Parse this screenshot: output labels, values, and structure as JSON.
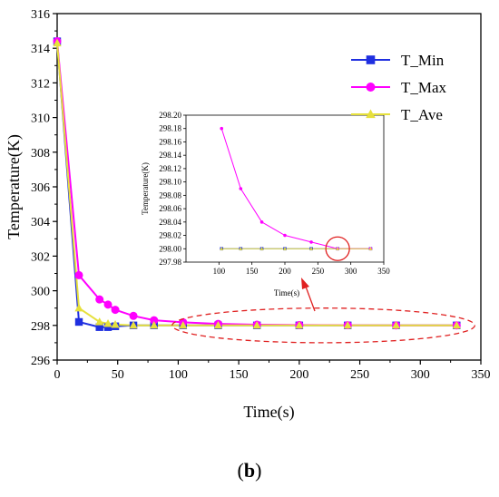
{
  "colors": {
    "t_min": "#1f2fe0",
    "t_max": "#ff00ff",
    "t_ave": "#e6e03c",
    "annotation": "#e02020",
    "axis": "#000000"
  },
  "caption": {
    "open": "(",
    "letter": "b",
    "close": ")"
  },
  "chart_data": [
    {
      "id": "main",
      "type": "line",
      "title": "",
      "xlabel": "Time(s)",
      "ylabel": "Temperature(K)",
      "xlim": [
        0,
        350
      ],
      "ylim": [
        296,
        316
      ],
      "xticks": [
        0,
        50,
        100,
        150,
        200,
        250,
        300,
        350
      ],
      "yticks": [
        296,
        298,
        300,
        302,
        304,
        306,
        308,
        310,
        312,
        314,
        316
      ],
      "grid": false,
      "legend_position": "top-right",
      "series": [
        {
          "name": "T_Min",
          "color_key": "t_min",
          "marker": "square",
          "x": [
            0,
            18,
            35,
            42,
            48,
            63,
            80,
            104,
            133,
            165,
            200,
            240,
            280,
            330
          ],
          "y": [
            314.4,
            298.2,
            297.9,
            297.9,
            297.95,
            298.0,
            298.0,
            298.0,
            298.0,
            298.0,
            298.0,
            298.0,
            298.0,
            298.0
          ]
        },
        {
          "name": "T_Max",
          "color_key": "t_max",
          "marker": "circle",
          "x": [
            0,
            18,
            35,
            42,
            48,
            63,
            80,
            104,
            133,
            165,
            200,
            240,
            280,
            330
          ],
          "y": [
            314.4,
            300.9,
            299.5,
            299.2,
            298.9,
            298.55,
            298.3,
            298.18,
            298.09,
            298.04,
            298.02,
            298.01,
            298.0,
            298.0
          ]
        },
        {
          "name": "T_Ave",
          "color_key": "t_ave",
          "marker": "triangle",
          "x": [
            0,
            18,
            35,
            42,
            48,
            63,
            80,
            104,
            133,
            165,
            200,
            240,
            280,
            330
          ],
          "y": [
            314.3,
            299.0,
            298.2,
            298.1,
            298.05,
            298.0,
            298.0,
            298.0,
            298.0,
            298.0,
            298.0,
            298.0,
            298.0,
            298.0
          ]
        }
      ],
      "annotations": [
        {
          "type": "dashed-ellipse",
          "x_range": [
            95,
            345
          ],
          "y_range": [
            297.0,
            299.0
          ],
          "color_key": "annotation"
        }
      ]
    },
    {
      "id": "inset",
      "type": "line",
      "title": "",
      "xlabel": "Time(s)",
      "ylabel": "Temperature(K)",
      "xlim": [
        50,
        350
      ],
      "ylim": [
        297.98,
        298.2
      ],
      "xticks": [
        100,
        150,
        200,
        250,
        300,
        350
      ],
      "yticks": [
        "297.98",
        "298.00",
        "298.02",
        "298.04",
        "298.06",
        "298.08",
        "298.10",
        "298.12",
        "298.14",
        "298.16",
        "298.18",
        "298.20"
      ],
      "grid": false,
      "series": [
        {
          "name": "T_Min",
          "color_key": "t_min",
          "marker": "square",
          "x": [
            104,
            133,
            165,
            200,
            240,
            280,
            330
          ],
          "y": [
            298.0,
            298.0,
            298.0,
            298.0,
            298.0,
            298.0,
            298.0
          ]
        },
        {
          "name": "T_Max",
          "color_key": "t_max",
          "marker": "circle",
          "x": [
            104,
            133,
            165,
            200,
            240,
            280,
            330
          ],
          "y": [
            298.18,
            298.09,
            298.04,
            298.02,
            298.01,
            298.0,
            298.0
          ]
        },
        {
          "name": "T_Ave",
          "color_key": "t_ave",
          "marker": "triangle",
          "x": [
            104,
            133,
            165,
            200,
            240,
            280,
            330
          ],
          "y": [
            298.0,
            298.0,
            298.0,
            298.0,
            298.0,
            298.0,
            298.0
          ]
        }
      ],
      "annotations": [
        {
          "type": "circle",
          "x": 280,
          "y": 298.0,
          "color_key": "annotation"
        }
      ]
    }
  ]
}
